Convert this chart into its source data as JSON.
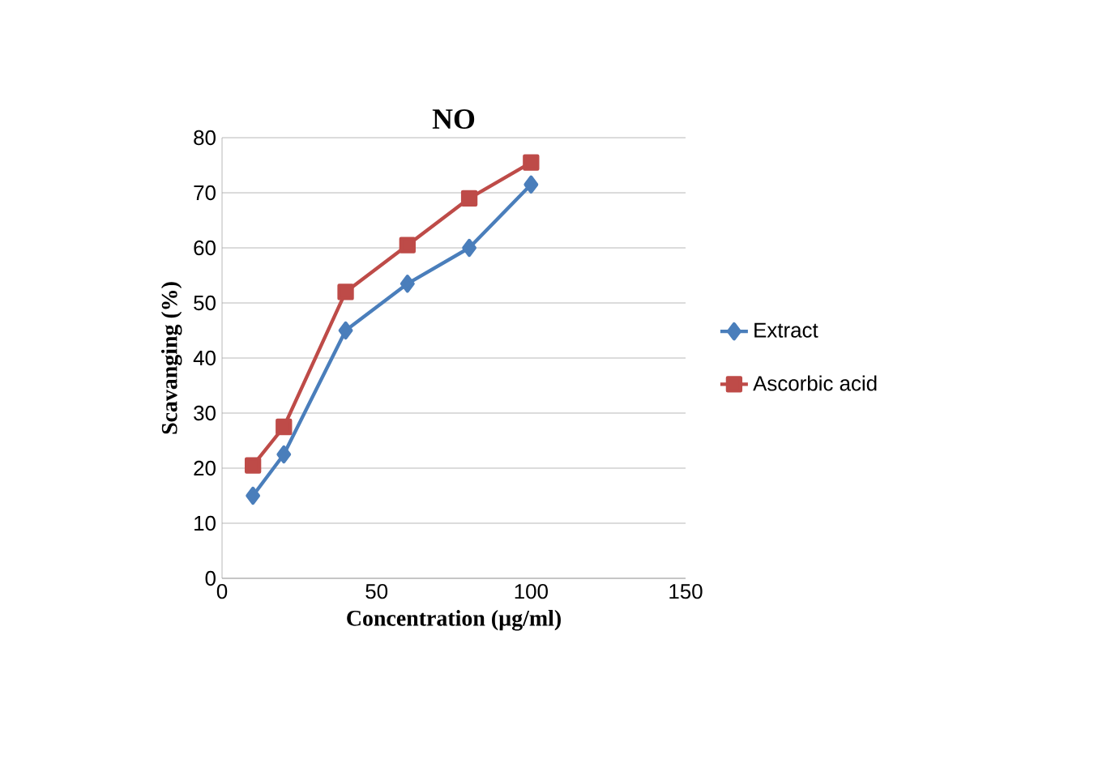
{
  "chart_data": {
    "type": "line",
    "title": "NO",
    "xlabel": "Concentration (µg/ml)",
    "ylabel": "Scavanging (%)",
    "xlim": [
      0,
      150
    ],
    "xticks": [
      0,
      50,
      100,
      150
    ],
    "ylim": [
      0,
      80
    ],
    "yticks": [
      0,
      10,
      20,
      30,
      40,
      50,
      60,
      70,
      80
    ],
    "grid": "y",
    "legend": "right",
    "series": [
      {
        "name": "Extract",
        "color": "#4a7ebb",
        "marker": "diamond",
        "x": [
          10,
          20,
          40,
          60,
          80,
          100
        ],
        "values": [
          15,
          22.5,
          45,
          53.5,
          60,
          71.5
        ]
      },
      {
        "name": "Ascorbic acid",
        "color": "#be4b48",
        "marker": "square",
        "x": [
          10,
          20,
          40,
          60,
          80,
          100
        ],
        "values": [
          20.5,
          27.5,
          52,
          60.5,
          69,
          75.5
        ]
      }
    ]
  }
}
